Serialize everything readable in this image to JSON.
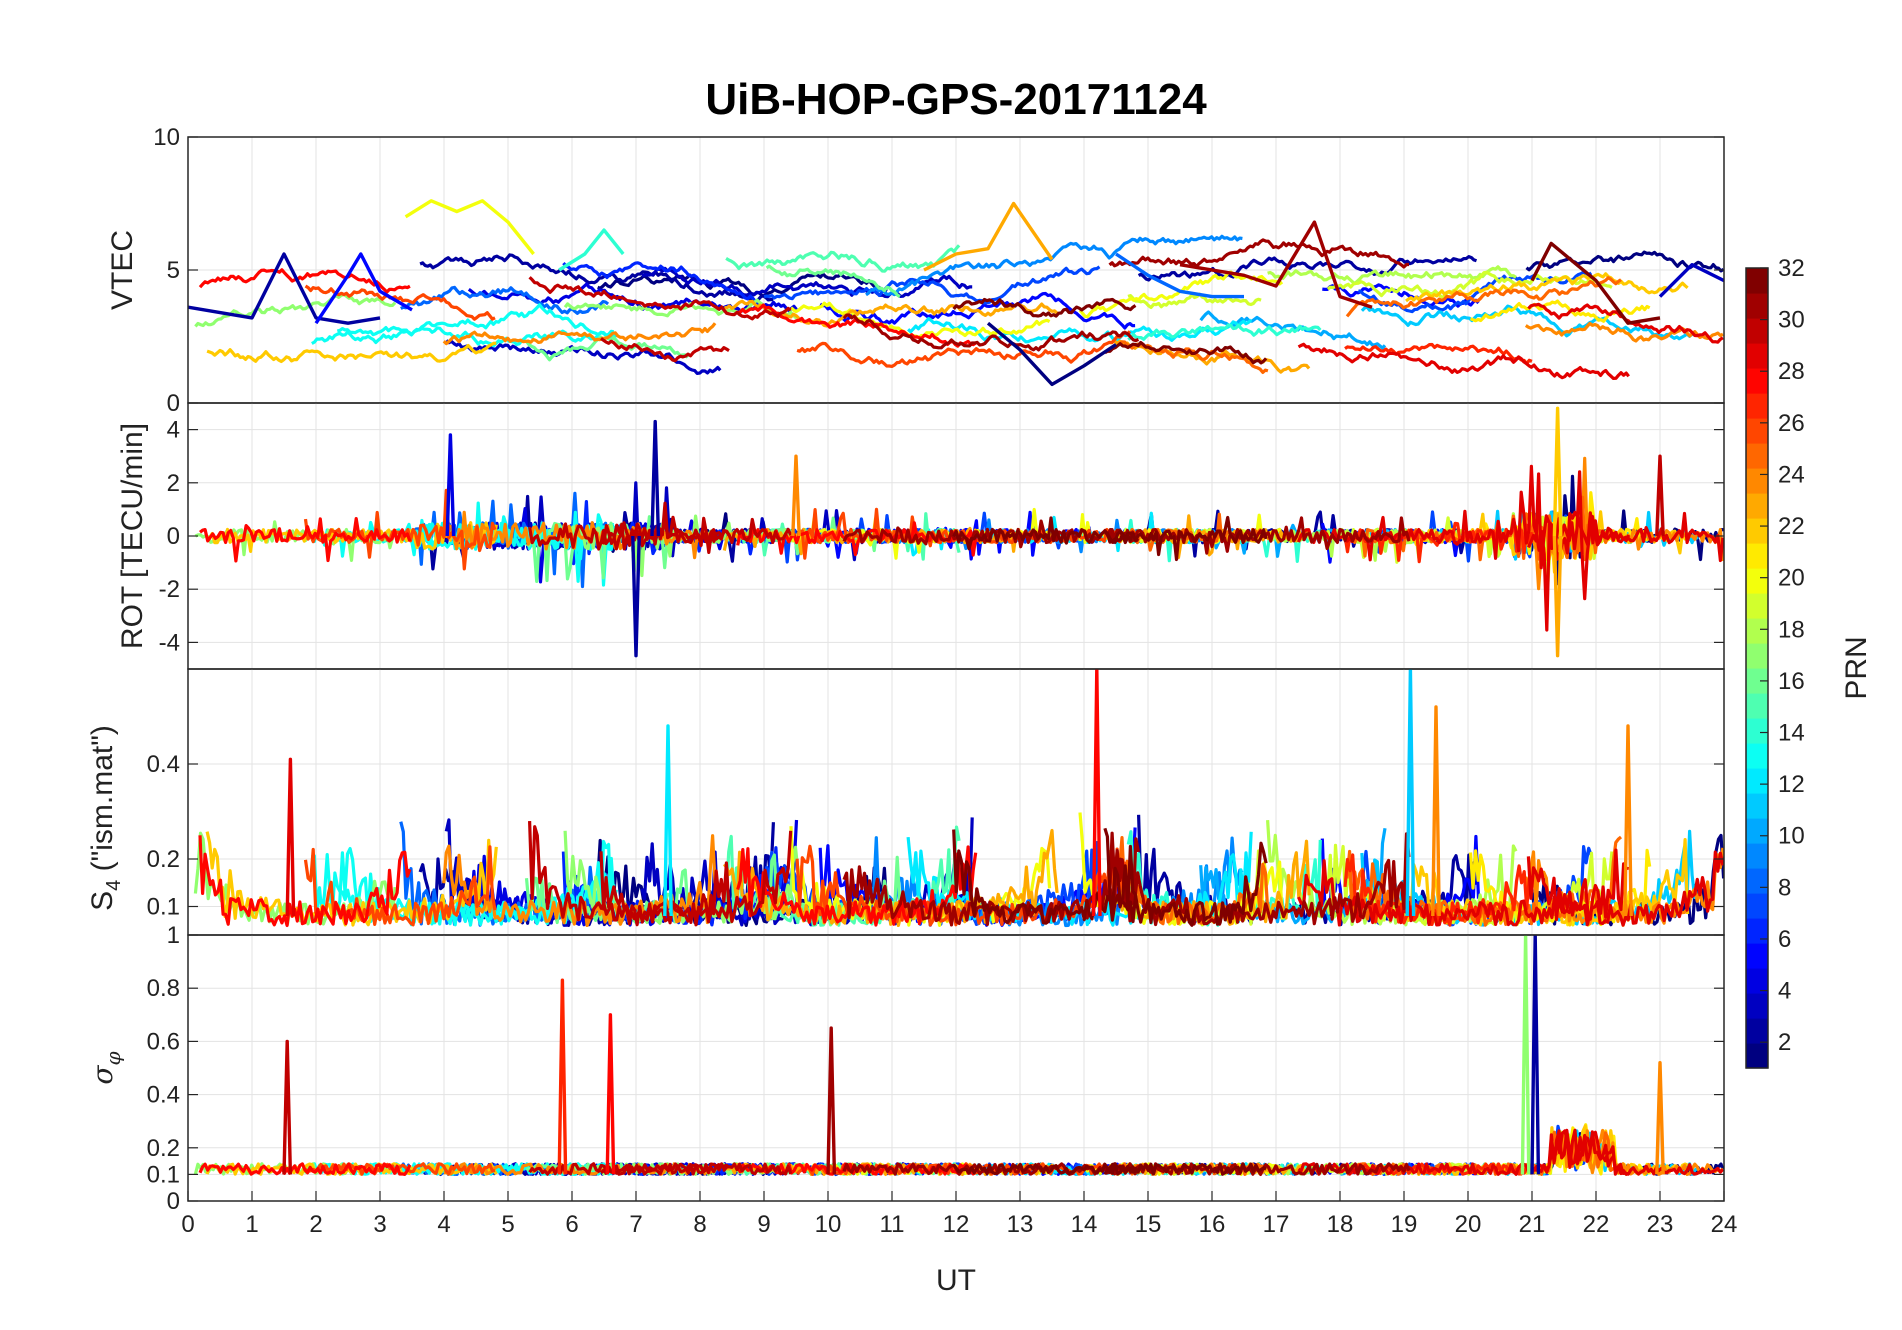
{
  "chart_data": [
    {
      "type": "line",
      "title": "UiB-HOP-GPS-20171124",
      "ylabel": "VTEC",
      "ylim": [
        0,
        10
      ],
      "yticks": [
        0,
        5,
        10
      ],
      "xlim": [
        0,
        24
      ],
      "grid": true,
      "series_note": "multi-satellite time series coloured by PRN",
      "series": [
        {
          "prn": 2,
          "x": [
            0,
            0.5,
            1.0,
            1.5,
            2.0,
            2.5,
            3.0
          ],
          "values": [
            3.6,
            3.4,
            3.2,
            5.6,
            3.2,
            3.0,
            3.2
          ]
        },
        {
          "prn": 5,
          "x": [
            2.0,
            2.5,
            2.7,
            3.0,
            3.5
          ],
          "values": [
            3.0,
            4.8,
            5.6,
            4.2,
            3.5
          ]
        },
        {
          "prn": 20,
          "x": [
            3.4,
            3.8,
            4.2,
            4.6,
            5.0,
            5.4
          ],
          "values": [
            7.0,
            7.6,
            7.2,
            7.6,
            6.8,
            5.6
          ]
        },
        {
          "prn": 14,
          "x": [
            5.8,
            6.2,
            6.5,
            6.8
          ],
          "values": [
            5.0,
            5.6,
            6.5,
            5.6
          ]
        },
        {
          "prn": 23,
          "x": [
            11.5,
            12.0,
            12.5,
            12.9,
            13.5
          ],
          "values": [
            5.0,
            5.6,
            5.8,
            7.5,
            5.4
          ]
        },
        {
          "prn": 8,
          "x": [
            14.5,
            15.0,
            15.5,
            16.0,
            16.5
          ],
          "values": [
            5.6,
            4.8,
            4.2,
            4.0,
            4.0
          ]
        },
        {
          "prn": 31,
          "x": [
            15.5,
            16.5,
            17.0,
            17.6,
            18.0,
            18.5
          ],
          "values": [
            5.2,
            4.8,
            4.4,
            6.8,
            4.0,
            3.6
          ]
        },
        {
          "prn": 1,
          "x": [
            12.5,
            13.0,
            13.5,
            14.0,
            14.5
          ],
          "values": [
            3.0,
            2.0,
            0.7,
            1.4,
            2.2
          ]
        },
        {
          "prn": 32,
          "x": [
            21.0,
            21.3,
            21.6,
            22.0,
            22.5,
            23.0
          ],
          "values": [
            4.6,
            6.0,
            5.4,
            4.6,
            3.0,
            3.2
          ]
        },
        {
          "prn": 3,
          "x": [
            23.0,
            23.5,
            24.0
          ],
          "values": [
            4.0,
            5.2,
            4.6
          ]
        }
      ]
    },
    {
      "type": "line",
      "ylabel": "ROT [TECU/min]",
      "ylim": [
        -5,
        5
      ],
      "yticks": [
        -4,
        -2,
        0,
        2,
        4
      ],
      "xlim": [
        0,
        24
      ],
      "grid": true,
      "spikes": [
        {
          "prn": 2,
          "x": 7.3,
          "value": 4.3
        },
        {
          "prn": 2,
          "x": 7.0,
          "value": -4.5
        },
        {
          "prn": 4,
          "x": 4.1,
          "value": 3.8
        },
        {
          "prn": 24,
          "x": 9.5,
          "value": 3.0
        },
        {
          "prn": 22,
          "x": 21.4,
          "value": 4.8
        },
        {
          "prn": 23,
          "x": 21.4,
          "value": -4.5
        },
        {
          "prn": 30,
          "x": 23.0,
          "value": 3.0
        }
      ]
    },
    {
      "type": "line",
      "ylabel_main": "S",
      "ylabel_sub": "4",
      "ylabel_rest": " (\"ism.mat\")",
      "ylim": [
        0.04,
        0.6
      ],
      "yticks": [
        0.1,
        0.2,
        0.4
      ],
      "xlim": [
        0,
        24
      ],
      "grid": true,
      "spikes": [
        {
          "prn": 28,
          "x": 14.2,
          "value": 0.6
        },
        {
          "prn": 11,
          "x": 19.1,
          "value": 0.6
        },
        {
          "prn": 24,
          "x": 19.5,
          "value": 0.52
        },
        {
          "prn": 24,
          "x": 22.5,
          "value": 0.48
        },
        {
          "prn": 12,
          "x": 7.5,
          "value": 0.48
        },
        {
          "prn": 29,
          "x": 1.6,
          "value": 0.41
        }
      ]
    },
    {
      "type": "line",
      "ylabel_main": "σ",
      "ylabel_sub": "φ",
      "ylim": [
        0,
        1
      ],
      "yticks": [
        0,
        0.1,
        0.2,
        0.4,
        0.6,
        0.8,
        1
      ],
      "xlim": [
        0,
        24
      ],
      "xticks": [
        0,
        1,
        2,
        3,
        4,
        5,
        6,
        7,
        8,
        9,
        10,
        11,
        12,
        13,
        14,
        15,
        16,
        17,
        18,
        19,
        20,
        21,
        22,
        23,
        24
      ],
      "xlabel": "UT",
      "grid": true,
      "spikes": [
        {
          "prn": 30,
          "x": 1.55,
          "value": 0.6
        },
        {
          "prn": 27,
          "x": 5.85,
          "value": 0.83
        },
        {
          "prn": 28,
          "x": 6.6,
          "value": 0.7
        },
        {
          "prn": 31,
          "x": 10.05,
          "value": 0.65
        },
        {
          "prn": 17,
          "x": 20.9,
          "value": 1.0
        },
        {
          "prn": 2,
          "x": 21.05,
          "value": 1.0
        },
        {
          "prn": 24,
          "x": 23.0,
          "value": 0.52
        }
      ]
    }
  ],
  "colorbar": {
    "label": "PRN",
    "min": 1,
    "max": 32,
    "ticks": [
      2,
      4,
      6,
      8,
      10,
      12,
      14,
      16,
      18,
      20,
      22,
      24,
      26,
      28,
      30,
      32
    ],
    "colormap": "jet"
  }
}
